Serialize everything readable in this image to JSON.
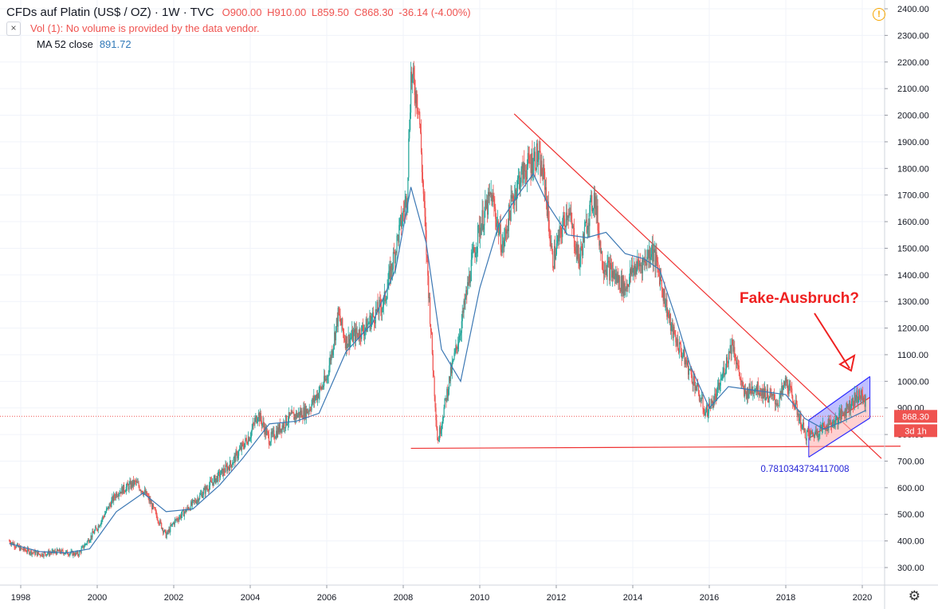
{
  "header": {
    "title": "CFDs auf Platin (US$ / OZ) · 1W · TVC",
    "open": "O900.00",
    "high": "H910.00",
    "low": "L859.50",
    "close": "C868.30",
    "change": "-36.14 (-4.00%)",
    "vol_label": "Vol (1): No volume is provided by the data vendor.",
    "ma_label": "MA 52 close",
    "ma_value": "891.72",
    "alert_icon": "!",
    "collapse_icon": "×"
  },
  "price_badge": "868.30",
  "time_badge": "3d 1h",
  "annotations": {
    "headline": "Fake-Ausbruch?",
    "fib_label": "0.7810343734117008"
  },
  "colors": {
    "up": "#26a69a",
    "down": "#ef5350",
    "ma": "#3c78b4",
    "trendline": "#ef3030",
    "channel_upper_fill": "#8c8cff",
    "channel_lower_fill": "#ffb3b3"
  },
  "chart_data": {
    "type": "line",
    "title": "",
    "xlabel": "",
    "ylabel": "",
    "x_ticks": [
      "1998",
      "2000",
      "2002",
      "2004",
      "2006",
      "2008",
      "2010",
      "2012",
      "2014",
      "2016",
      "2018",
      "2020"
    ],
    "y_ticks": [
      "300.00",
      "400.00",
      "500.00",
      "600.00",
      "700.00",
      "800.00",
      "900.00",
      "1000.00",
      "1100.00",
      "1200.00",
      "1300.00",
      "1400.00",
      "1500.00",
      "1600.00",
      "1700.00",
      "1800.00",
      "1900.00",
      "2000.00",
      "2100.00",
      "2200.00",
      "2300.00",
      "2400.00"
    ],
    "xlim": [
      1997.6,
      2021.3
    ],
    "ylim": [
      230,
      2410
    ],
    "grid": true,
    "series": [
      {
        "type": "price",
        "x": [
          1997.7,
          1998.0,
          1998.5,
          1999.0,
          1999.5,
          2000.0,
          2000.5,
          2001.0,
          2001.3,
          2001.8,
          2002.0,
          2002.5,
          2003.0,
          2003.5,
          2004.0,
          2004.2,
          2004.5,
          2005.0,
          2005.5,
          2006.0,
          2006.3,
          2006.5,
          2007.0,
          2007.5,
          2007.8,
          2008.1,
          2008.2,
          2008.4,
          2008.6,
          2008.8,
          2008.9,
          2009.2,
          2009.5,
          2009.8,
          2010.0,
          2010.3,
          2010.6,
          2010.8,
          2011.0,
          2011.2,
          2011.5,
          2011.7,
          2011.9,
          2012.0,
          2012.3,
          2012.6,
          2012.8,
          2013.0,
          2013.2,
          2013.5,
          2013.8,
          2014.0,
          2014.3,
          2014.5,
          2014.7,
          2015.0,
          2015.3,
          2015.6,
          2015.9,
          2016.2,
          2016.6,
          2016.9,
          2017.2,
          2017.5,
          2017.8,
          2018.0,
          2018.2,
          2018.5,
          2018.7,
          2019.0,
          2019.3,
          2019.6,
          2019.9,
          2020.1
        ],
        "values": [
          400,
          370,
          350,
          360,
          350,
          450,
          580,
          620,
          570,
          420,
          470,
          540,
          620,
          690,
          800,
          880,
          780,
          860,
          890,
          1010,
          1250,
          1150,
          1200,
          1300,
          1500,
          1700,
          2150,
          2050,
          1500,
          1000,
          770,
          1000,
          1200,
          1450,
          1580,
          1700,
          1500,
          1650,
          1750,
          1800,
          1850,
          1750,
          1450,
          1500,
          1650,
          1450,
          1600,
          1700,
          1450,
          1400,
          1350,
          1420,
          1450,
          1500,
          1400,
          1200,
          1100,
          1000,
          880,
          950,
          1150,
          950,
          980,
          950,
          920,
          1000,
          930,
          800,
          800,
          830,
          850,
          900,
          950,
          920
        ]
      },
      {
        "name": "MA 52 close",
        "x": [
          1997.7,
          1998.5,
          1999.2,
          1999.8,
          2000.5,
          2001.2,
          2001.8,
          2002.5,
          2003.2,
          2003.8,
          2004.5,
          2005.2,
          2005.8,
          2006.5,
          2007.2,
          2007.8,
          2008.2,
          2008.6,
          2009.0,
          2009.5,
          2010.0,
          2010.5,
          2011.0,
          2011.4,
          2011.8,
          2012.3,
          2012.8,
          2013.3,
          2013.8,
          2014.3,
          2014.7,
          2015.1,
          2015.5,
          2016.0,
          2016.5,
          2017.0,
          2017.5,
          2018.0,
          2018.5,
          2019.0,
          2019.5,
          2020.1
        ],
        "values": [
          390,
          360,
          355,
          370,
          510,
          580,
          510,
          520,
          610,
          710,
          840,
          850,
          880,
          1110,
          1220,
          1420,
          1730,
          1520,
          1120,
          1000,
          1350,
          1590,
          1700,
          1780,
          1660,
          1550,
          1540,
          1560,
          1480,
          1460,
          1420,
          1250,
          1060,
          900,
          980,
          970,
          960,
          950,
          860,
          820,
          850,
          891
        ]
      }
    ],
    "trendlines": [
      {
        "x": [
          2010.9,
          2020.5
        ],
        "y": [
          2005,
          710
        ]
      },
      {
        "x": [
          2008.2,
          2021.0
        ],
        "y": [
          748,
          756
        ]
      }
    ],
    "channel": {
      "upper": {
        "x": [
          2018.6,
          2020.2
        ],
        "y": [
          854,
          1018
        ]
      },
      "mid": {
        "x": [
          2018.6,
          2020.2
        ],
        "y": [
          785,
          940
        ]
      },
      "lower": {
        "x": [
          2018.6,
          2020.2
        ],
        "y": [
          715,
          862
        ]
      }
    },
    "current_price": 868.3
  }
}
